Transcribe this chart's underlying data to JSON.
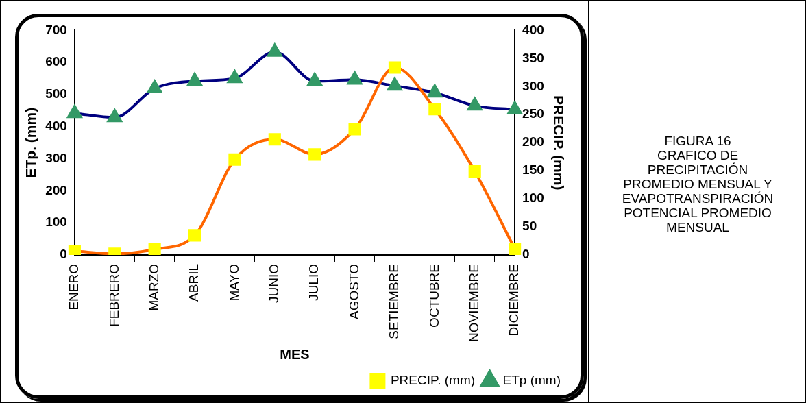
{
  "chart_data": {
    "type": "line",
    "xlabel": "MES",
    "ylabel": "ETp. (mm)",
    "y2label": "PRECIP. (mm)",
    "categories": [
      "ENERO",
      "FEBRERO",
      "MARZO",
      "ABRIL",
      "MAYO",
      "JUNIO",
      "JULIO",
      "AGOSTO",
      "SETIEMBRE",
      "OCTUBRE",
      "NOVIEMBRE",
      "DICIEMBRE"
    ],
    "series": [
      {
        "name": "PRECIP. (mm)",
        "color": "#ff6600",
        "axis": "y2",
        "marker": "square",
        "values": [
          7,
          2,
          10,
          35,
          170,
          206,
          179,
          224,
          334,
          260,
          149,
          11
        ]
      },
      {
        "name": "ETp (mm)",
        "color": "#000080",
        "marker": "triangle",
        "values": [
          442,
          429,
          519,
          542,
          551,
          633,
          542,
          546,
          527,
          506,
          465,
          453
        ]
      }
    ],
    "ylim": [
      0,
      700
    ],
    "yticks": [
      0,
      100,
      200,
      300,
      400,
      500,
      600,
      700
    ],
    "y2lim": [
      0,
      400
    ],
    "y2ticks": [
      0,
      50,
      100,
      150,
      200,
      250,
      300,
      350,
      400
    ],
    "grid": false,
    "legend": "bottom right",
    "annotations": [
      "FIGURA 16\nGRAFICO DE\nPRECIPITACIÓN\nPROMEDIO MENSUAL Y\nEVAPOTRANSPIRACIÓN\nPOTENCIAL PROMEDIO\nMENSUAL"
    ]
  }
}
